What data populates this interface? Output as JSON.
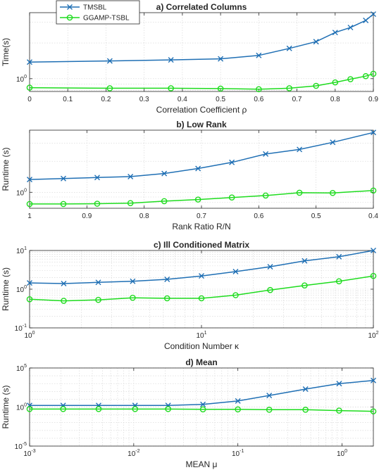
{
  "colors": {
    "tmsbl": "#1f6fb4",
    "ggamp": "#1edc1e"
  },
  "legend": {
    "labels": [
      "TMSBL",
      "GGAMP-TSBL"
    ],
    "placement": "top-left"
  },
  "chart_data": [
    {
      "type": "line",
      "title": "a) Correlated Columns",
      "xlabel": "Correlation Coefficient ρ",
      "ylabel": "Time(s)",
      "xscale": "linear",
      "yscale": "log",
      "xlim": [
        0,
        0.9
      ],
      "ylim": [
        0.78,
        3.6
      ],
      "xticks": [
        0,
        0.1,
        0.2,
        0.3,
        0.4,
        0.5,
        0.6,
        0.7,
        0.8,
        0.9
      ],
      "xtick_labels": [
        "0",
        "0.1",
        "0.2",
        "0.3",
        "0.4",
        "0.5",
        "0.6",
        "0.7",
        "0.8",
        "0.9"
      ],
      "yticks": [
        1
      ],
      "ytick_labels": [
        "10^0"
      ],
      "grid": true,
      "series": [
        {
          "name": "TMSBL",
          "x": [
            0,
            0.21,
            0.37,
            0.5,
            0.6,
            0.68,
            0.75,
            0.8,
            0.84,
            0.88,
            0.9
          ],
          "values": [
            1.38,
            1.41,
            1.44,
            1.47,
            1.57,
            1.8,
            2.05,
            2.45,
            2.7,
            3.1,
            3.5
          ]
        },
        {
          "name": "GGAMP-TSBL",
          "x": [
            0,
            0.21,
            0.37,
            0.5,
            0.6,
            0.68,
            0.75,
            0.8,
            0.84,
            0.88,
            0.9
          ],
          "values": [
            0.84,
            0.83,
            0.83,
            0.825,
            0.815,
            0.83,
            0.87,
            0.93,
            0.99,
            1.05,
            1.1
          ]
        }
      ]
    },
    {
      "type": "line",
      "title": "b) Low Rank",
      "xlabel": "Rank Ratio R/N",
      "ylabel": "Runtime (s)",
      "xscale": "linear",
      "xreversed": true,
      "yscale": "log",
      "xlim": [
        1,
        0.4
      ],
      "ylim": [
        0.7,
        4.0
      ],
      "xticks": [
        1,
        0.9,
        0.8,
        0.7,
        0.6,
        0.5,
        0.4
      ],
      "xtick_labels": [
        "1",
        "0.9",
        "0.8",
        "0.7",
        "0.6",
        "0.5",
        "0.4"
      ],
      "yticks": [
        1
      ],
      "ytick_labels": [
        "10^0"
      ],
      "grid": true,
      "series": [
        {
          "name": "TMSBL",
          "x": [
            1,
            0.941,
            0.882,
            0.824,
            0.765,
            0.706,
            0.647,
            0.588,
            0.529,
            0.471,
            0.4
          ],
          "values": [
            1.33,
            1.36,
            1.39,
            1.42,
            1.52,
            1.7,
            1.95,
            2.35,
            2.6,
            3.05,
            3.8
          ]
        },
        {
          "name": "GGAMP-TSBL",
          "x": [
            1,
            0.941,
            0.882,
            0.824,
            0.765,
            0.706,
            0.647,
            0.588,
            0.529,
            0.471,
            0.4
          ],
          "values": [
            0.77,
            0.77,
            0.775,
            0.785,
            0.82,
            0.85,
            0.89,
            0.93,
            0.99,
            0.985,
            1.04
          ]
        }
      ]
    },
    {
      "type": "line",
      "title": "c) Ill Conditioned Matrix",
      "xlabel": "Condition Number κ",
      "ylabel": "Runtime (s)",
      "xscale": "log",
      "yscale": "log",
      "xlim": [
        1,
        100
      ],
      "ylim": [
        0.1,
        10
      ],
      "xticks": [
        1,
        10,
        100
      ],
      "xtick_labels": [
        "10^0",
        "10^1",
        "10^2"
      ],
      "yticks": [
        0.1,
        1,
        10
      ],
      "ytick_labels": [
        "10^-1",
        "10^0",
        "10^1"
      ],
      "grid": true,
      "series": [
        {
          "name": "TMSBL",
          "x": [
            1,
            1.58,
            2.51,
            3.98,
            6.31,
            10,
            15.8,
            25.1,
            39.8,
            63.1,
            100
          ],
          "values": [
            1.45,
            1.4,
            1.5,
            1.6,
            1.8,
            2.2,
            2.85,
            3.8,
            5.4,
            6.9,
            10
          ]
        },
        {
          "name": "GGAMP-TSBL",
          "x": [
            1,
            1.58,
            2.51,
            3.98,
            6.31,
            10,
            15.8,
            25.1,
            39.8,
            63.1,
            100
          ],
          "values": [
            0.55,
            0.5,
            0.53,
            0.6,
            0.58,
            0.58,
            0.7,
            0.95,
            1.25,
            1.6,
            2.2
          ]
        }
      ]
    },
    {
      "type": "line",
      "title": "d) Mean",
      "xlabel": "MEAN μ",
      "ylabel": "Runtime (s)",
      "xscale": "log",
      "yscale": "log",
      "xlim": [
        0.001,
        2
      ],
      "ylim": [
        1e-05,
        100000
      ],
      "xticks": [
        0.001,
        0.01,
        0.1,
        1
      ],
      "xtick_labels": [
        "10^-3",
        "10^-2",
        "10^-1",
        "10^0"
      ],
      "yticks": [
        1e-05,
        1,
        100000
      ],
      "ytick_labels": [
        "10^-5",
        "10^0",
        "10^5"
      ],
      "grid": true,
      "series": [
        {
          "name": "TMSBL",
          "x": [
            0.001,
            0.0021,
            0.0046,
            0.0103,
            0.0214,
            0.0462,
            0.1,
            0.2,
            0.446,
            0.938,
            2
          ],
          "values": [
            1.6,
            1.6,
            1.6,
            1.6,
            1.6,
            2.2,
            6,
            30,
            200,
            1000,
            2500
          ]
        },
        {
          "name": "GGAMP-TSBL",
          "x": [
            0.001,
            0.0021,
            0.0046,
            0.0103,
            0.0214,
            0.0462,
            0.1,
            0.2,
            0.446,
            0.938,
            2
          ],
          "values": [
            0.55,
            0.55,
            0.55,
            0.55,
            0.55,
            0.5,
            0.5,
            0.45,
            0.45,
            0.35,
            0.28
          ]
        }
      ]
    }
  ]
}
